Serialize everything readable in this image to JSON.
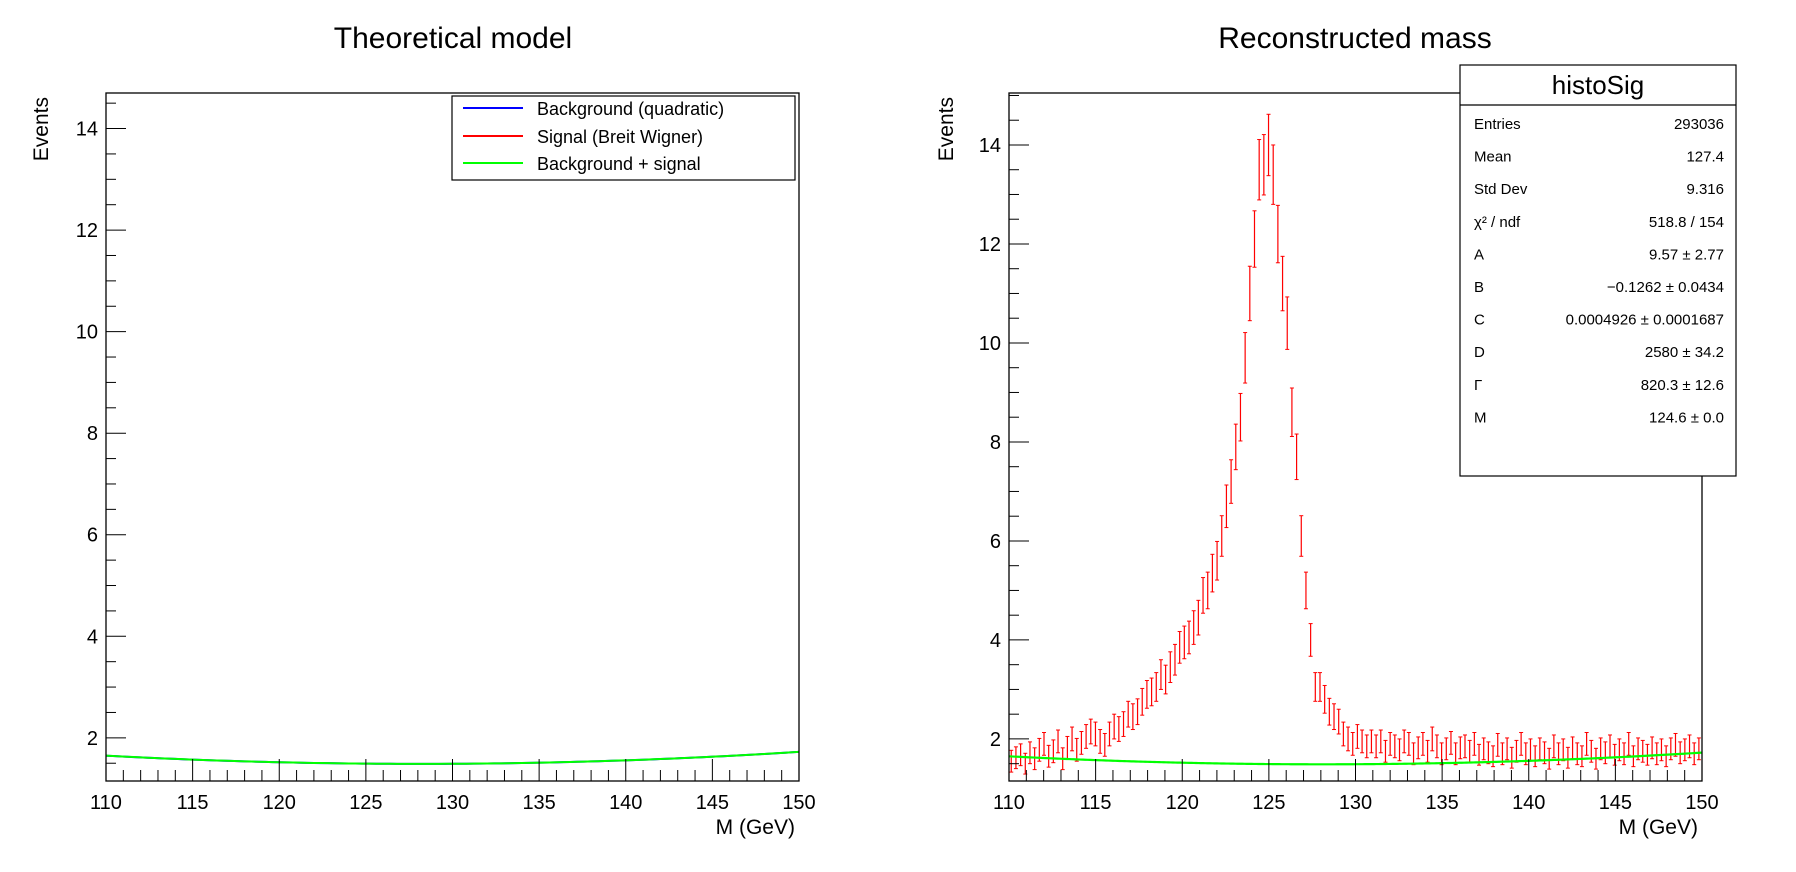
{
  "chart_data": [
    {
      "type": "line",
      "title": "Theoretical model",
      "xlabel": "M (GeV)",
      "ylabel": "Events",
      "xlim": [
        110,
        150
      ],
      "ylim": [
        1.15,
        14.7
      ],
      "xticks": [
        "110",
        "115",
        "120",
        "125",
        "130",
        "135",
        "140",
        "145",
        "150"
      ],
      "yticks": [
        "2",
        "4",
        "6",
        "8",
        "10",
        "12",
        "14"
      ],
      "legend_position": "top-right",
      "params": {
        "A": 9.57,
        "B": -0.1262,
        "C": 0.0004926,
        "D": 2580,
        "Gamma": 820.3,
        "M": 124.6
      },
      "series": [
        {
          "name": "Background (quadratic)",
          "color": "#0000ff",
          "function": "background"
        },
        {
          "name": "Signal (Breit Wigner)",
          "color": "#ff0000",
          "function": "signal"
        },
        {
          "name": "Background + signal",
          "color": "#00ff00",
          "function": "total"
        }
      ]
    },
    {
      "type": "scatter",
      "title": "Reconstructed mass",
      "xlabel": "M (GeV)",
      "ylabel": "Events",
      "xlim": [
        110,
        150
      ],
      "ylim": [
        1.15,
        15.05
      ],
      "xticks": [
        "110",
        "115",
        "120",
        "125",
        "130",
        "135",
        "140",
        "145",
        "150"
      ],
      "yticks": [
        "2",
        "4",
        "6",
        "8",
        "10",
        "12",
        "14"
      ],
      "histogram_color": "#ff0000",
      "fit_color": "#00ff00",
      "bins": {
        "x": [
          110.13,
          110.4,
          110.67,
          110.94,
          111.21,
          111.48,
          111.75,
          112.02,
          112.29,
          112.56,
          112.83,
          113.1,
          113.37,
          113.64,
          113.91,
          114.18,
          114.45,
          114.72,
          114.99,
          115.26,
          115.53,
          115.8,
          116.07,
          116.34,
          116.61,
          116.88,
          117.15,
          117.42,
          117.69,
          117.96,
          118.23,
          118.5,
          118.77,
          119.04,
          119.31,
          119.58,
          119.85,
          120.12,
          120.39,
          120.66,
          120.93,
          121.2,
          121.47,
          121.74,
          122.01,
          122.28,
          122.55,
          122.82,
          123.09,
          123.36,
          123.63,
          123.9,
          124.17,
          124.44,
          124.71,
          124.98,
          125.25,
          125.52,
          125.79,
          126.06,
          126.33,
          126.6,
          126.87,
          127.14,
          127.41,
          127.68,
          127.95,
          128.22,
          128.49,
          128.76,
          129.03,
          129.3,
          129.57,
          129.84,
          130.11,
          130.38,
          130.65,
          130.92,
          131.19,
          131.46,
          131.73,
          132.0,
          132.27,
          132.54,
          132.81,
          133.08,
          133.35,
          133.62,
          133.89,
          134.16,
          134.43,
          134.7,
          134.97,
          135.24,
          135.51,
          135.78,
          136.05,
          136.32,
          136.59,
          136.86,
          137.13,
          137.4,
          137.67,
          137.94,
          138.21,
          138.48,
          138.75,
          139.02,
          139.29,
          139.56,
          139.83,
          140.1,
          140.37,
          140.64,
          140.91,
          141.18,
          141.45,
          141.72,
          141.99,
          142.26,
          142.53,
          142.8,
          143.07,
          143.34,
          143.61,
          143.88,
          144.15,
          144.42,
          144.69,
          144.96,
          145.23,
          145.5,
          145.77,
          146.04,
          146.31,
          146.58,
          146.85,
          147.12,
          147.39,
          147.66,
          147.93,
          148.2,
          148.47,
          148.74,
          149.01,
          149.28,
          149.55,
          149.82
        ],
        "y": [
          1.55,
          1.62,
          1.68,
          1.5,
          1.72,
          1.6,
          1.78,
          1.9,
          1.65,
          1.75,
          1.95,
          1.6,
          1.82,
          2.0,
          1.78,
          1.92,
          2.05,
          2.15,
          2.1,
          1.95,
          1.88,
          2.1,
          2.25,
          2.2,
          2.3,
          2.5,
          2.45,
          2.55,
          2.75,
          2.9,
          2.95,
          3.05,
          3.3,
          3.2,
          3.45,
          3.6,
          3.85,
          3.95,
          4.05,
          4.25,
          4.45,
          4.9,
          5.0,
          5.35,
          5.6,
          6.1,
          6.7,
          7.2,
          7.9,
          8.5,
          9.7,
          11.0,
          12.1,
          13.5,
          13.6,
          14.0,
          13.4,
          12.2,
          11.2,
          10.4,
          8.6,
          7.7,
          6.1,
          5.0,
          4.0,
          3.05,
          3.05,
          2.8,
          2.55,
          2.45,
          2.35,
          2.1,
          2.0,
          1.9,
          2.05,
          1.95,
          1.85,
          1.95,
          1.85,
          1.95,
          1.75,
          1.9,
          1.85,
          1.78,
          1.95,
          1.9,
          1.7,
          1.82,
          1.9,
          1.75,
          2.0,
          1.85,
          1.7,
          1.8,
          1.92,
          1.7,
          1.82,
          1.85,
          1.75,
          1.9,
          1.68,
          1.8,
          1.72,
          1.65,
          1.88,
          1.7,
          1.8,
          1.62,
          1.75,
          1.9,
          1.7,
          1.78,
          1.65,
          1.8,
          1.72,
          1.6,
          1.85,
          1.7,
          1.78,
          1.62,
          1.82,
          1.7,
          1.65,
          1.9,
          1.75,
          1.6,
          1.8,
          1.72,
          1.85,
          1.68,
          1.78,
          1.7,
          1.9,
          1.65,
          1.8,
          1.75,
          1.68,
          1.82,
          1.7,
          1.78,
          1.65,
          1.8,
          1.88,
          1.72,
          1.78,
          1.85,
          1.7,
          1.8
        ],
        "err": [
          0.22,
          0.22,
          0.22,
          0.21,
          0.22,
          0.22,
          0.23,
          0.23,
          0.22,
          0.23,
          0.23,
          0.22,
          0.23,
          0.24,
          0.23,
          0.23,
          0.24,
          0.25,
          0.24,
          0.24,
          0.23,
          0.24,
          0.25,
          0.25,
          0.25,
          0.26,
          0.26,
          0.26,
          0.27,
          0.28,
          0.28,
          0.29,
          0.3,
          0.29,
          0.31,
          0.31,
          0.32,
          0.33,
          0.33,
          0.34,
          0.35,
          0.36,
          0.37,
          0.38,
          0.39,
          0.41,
          0.43,
          0.44,
          0.46,
          0.48,
          0.51,
          0.55,
          0.57,
          0.61,
          0.61,
          0.62,
          0.6,
          0.58,
          0.55,
          0.53,
          0.49,
          0.46,
          0.41,
          0.37,
          0.33,
          0.29,
          0.29,
          0.28,
          0.27,
          0.26,
          0.25,
          0.24,
          0.24,
          0.23,
          0.24,
          0.23,
          0.23,
          0.23,
          0.23,
          0.23,
          0.22,
          0.23,
          0.23,
          0.22,
          0.23,
          0.23,
          0.22,
          0.22,
          0.23,
          0.22,
          0.24,
          0.23,
          0.22,
          0.22,
          0.23,
          0.22,
          0.22,
          0.23,
          0.22,
          0.23,
          0.21,
          0.22,
          0.22,
          0.21,
          0.23,
          0.22,
          0.22,
          0.21,
          0.22,
          0.23,
          0.22,
          0.22,
          0.21,
          0.22,
          0.22,
          0.21,
          0.23,
          0.22,
          0.22,
          0.21,
          0.22,
          0.22,
          0.21,
          0.23,
          0.22,
          0.21,
          0.22,
          0.22,
          0.23,
          0.21,
          0.22,
          0.22,
          0.23,
          0.21,
          0.22,
          0.22,
          0.21,
          0.22,
          0.22,
          0.22,
          0.21,
          0.22,
          0.23,
          0.22,
          0.22,
          0.23,
          0.22,
          0.22
        ]
      },
      "stats_box": {
        "title": "histoSig",
        "rows": [
          {
            "key": "Entries",
            "value": "293036"
          },
          {
            "key": "Mean",
            "value": "127.4"
          },
          {
            "key": "Std Dev",
            "value": "9.316"
          },
          {
            "key": "χ² / ndf",
            "value": "518.8 / 154"
          },
          {
            "key": "A",
            "value": "9.57 ± 2.77"
          },
          {
            "key": "B",
            "value": "−0.1262 ± 0.0434"
          },
          {
            "key": "C",
            "value": "0.0004926 ± 0.0001687"
          },
          {
            "key": "D",
            "value": "2580 ± 34.2"
          },
          {
            "key": "Γ",
            "value": "820.3 ± 12.6"
          },
          {
            "key": "M",
            "value": "124.6 ± 0.0"
          }
        ]
      }
    }
  ]
}
